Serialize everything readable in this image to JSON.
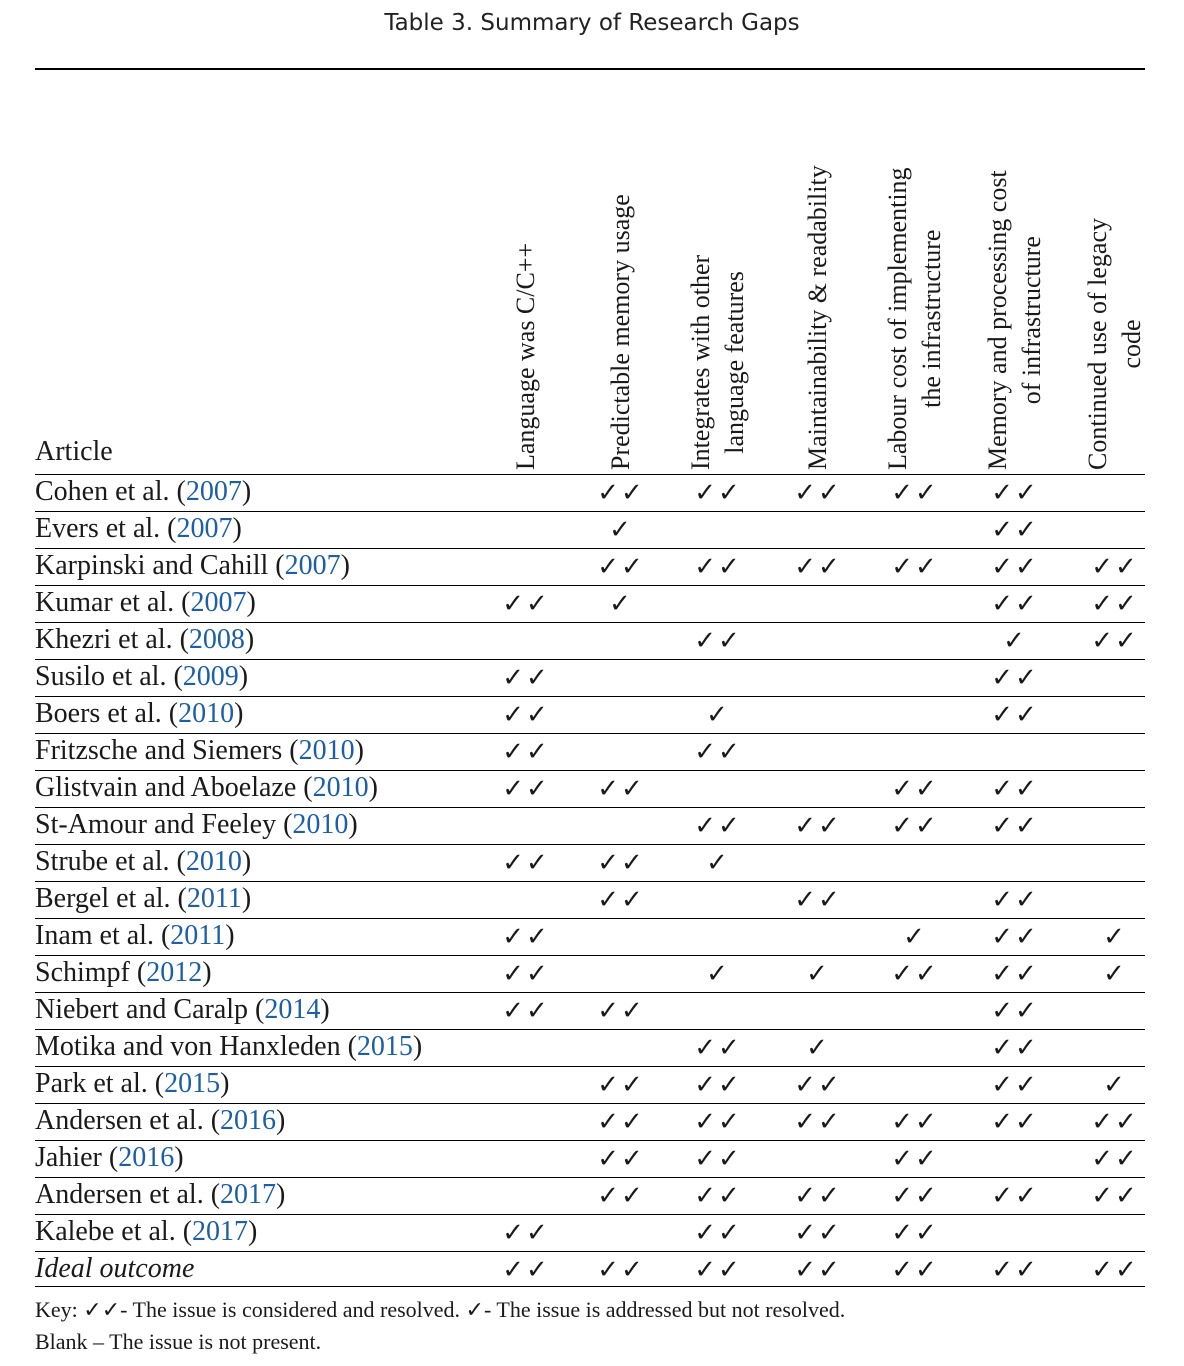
{
  "caption": "Table 3.  Summary of Research Gaps",
  "article_header": "Article",
  "columns": [
    [
      "Language was C/C++"
    ],
    [
      "Predictable memory usage"
    ],
    [
      "Integrates with other",
      "language features"
    ],
    [
      "Maintainability & readability"
    ],
    [
      "Labour cost of implementing",
      "the infrastructure"
    ],
    [
      "Memory and processing cost",
      "of infrastructure"
    ],
    [
      "Continued use of legacy",
      "code"
    ]
  ],
  "rows": [
    {
      "name": "Cohen et al. (",
      "year": "2007",
      "close": ")",
      "marks": [
        "",
        "✓✓",
        "✓✓",
        "✓✓",
        "✓✓",
        "✓✓",
        ""
      ]
    },
    {
      "name": "Evers et al. (",
      "year": "2007",
      "close": ")",
      "marks": [
        "",
        "✓",
        "",
        "",
        "",
        "✓✓",
        ""
      ]
    },
    {
      "name": "Karpinski and Cahill (",
      "year": "2007",
      "close": ")",
      "marks": [
        "",
        "✓✓",
        "✓✓",
        "✓✓",
        "✓✓",
        "✓✓",
        "✓✓"
      ]
    },
    {
      "name": "Kumar et al. (",
      "year": "2007",
      "close": ")",
      "marks": [
        "✓✓",
        "✓",
        "",
        "",
        "",
        "✓✓",
        "✓✓"
      ]
    },
    {
      "name": "Khezri et al. (",
      "year": "2008",
      "close": ")",
      "marks": [
        "",
        "",
        "✓✓",
        "",
        "",
        "✓",
        "✓✓"
      ]
    },
    {
      "name": "Susilo et al. (",
      "year": "2009",
      "close": ")",
      "marks": [
        "✓✓",
        "",
        "",
        "",
        "",
        "✓✓",
        ""
      ]
    },
    {
      "name": "Boers et al. (",
      "year": "2010",
      "close": ")",
      "marks": [
        "✓✓",
        "",
        "✓",
        "",
        "",
        "✓✓",
        ""
      ]
    },
    {
      "name": "Fritzsche and Siemers (",
      "year": "2010",
      "close": ")",
      "marks": [
        "✓✓",
        "",
        "✓✓",
        "",
        "",
        "",
        ""
      ]
    },
    {
      "name": "Glistvain and Aboelaze (",
      "year": "2010",
      "close": ")",
      "marks": [
        "✓✓",
        "✓✓",
        "",
        "",
        "✓✓",
        "✓✓",
        ""
      ]
    },
    {
      "name": "St-Amour and Feeley (",
      "year": "2010",
      "close": ")",
      "marks": [
        "",
        "",
        "✓✓",
        "✓✓",
        "✓✓",
        "✓✓",
        ""
      ]
    },
    {
      "name": "Strube et al. (",
      "year": "2010",
      "close": ")",
      "marks": [
        "✓✓",
        "✓✓",
        "✓",
        "",
        "",
        "",
        ""
      ]
    },
    {
      "name": "Bergel et al. (",
      "year": "2011",
      "close": ")",
      "marks": [
        "",
        "✓✓",
        "",
        "✓✓",
        "",
        "✓✓",
        ""
      ]
    },
    {
      "name": "Inam et al. (",
      "year": "2011",
      "close": ")",
      "marks": [
        "✓✓",
        "",
        "",
        "",
        "✓",
        "✓✓",
        "✓"
      ]
    },
    {
      "name": "Schimpf (",
      "year": "2012",
      "close": ")",
      "marks": [
        "✓✓",
        "",
        "✓",
        "✓",
        "✓✓",
        "✓✓",
        "✓"
      ]
    },
    {
      "name": "Niebert and Caralp (",
      "year": "2014",
      "close": ")",
      "marks": [
        "✓✓",
        "✓✓",
        "",
        "",
        "",
        "✓✓",
        ""
      ]
    },
    {
      "name": "Motika and von Hanxleden (",
      "year": "2015",
      "close": ")",
      "marks": [
        "",
        "",
        "✓✓",
        "✓",
        "",
        "✓✓",
        ""
      ]
    },
    {
      "name": "Park et al. (",
      "year": "2015",
      "close": ")",
      "marks": [
        "",
        "✓✓",
        "✓✓",
        "✓✓",
        "",
        "✓✓",
        "✓"
      ]
    },
    {
      "name": "Andersen et al. (",
      "year": "2016",
      "close": ")",
      "marks": [
        "",
        "✓✓",
        "✓✓",
        "✓✓",
        "✓✓",
        "✓✓",
        "✓✓"
      ]
    },
    {
      "name": "Jahier (",
      "year": "2016",
      "close": ")",
      "marks": [
        "",
        "✓✓",
        "✓✓",
        "",
        "✓✓",
        "",
        "✓✓"
      ]
    },
    {
      "name": "Andersen et al. (",
      "year": "2017",
      "close": ")",
      "marks": [
        "",
        "✓✓",
        "✓✓",
        "✓✓",
        "✓✓",
        "✓✓",
        "✓✓"
      ]
    },
    {
      "name": "Kalebe et al. (",
      "year": "2017",
      "close": ")",
      "marks": [
        "✓✓",
        "",
        "✓✓",
        "✓✓",
        "✓✓",
        "",
        ""
      ]
    },
    {
      "name": "Ideal outcome",
      "year": "",
      "close": "",
      "ideal": true,
      "marks": [
        "✓✓",
        "✓✓",
        "✓✓",
        "✓✓",
        "✓✓",
        "✓✓",
        "✓✓"
      ]
    }
  ],
  "key_line1": "Key: ✓✓- The issue is considered and resolved. ✓- The issue is addressed but not resolved.",
  "key_line2": "Blank – The issue is not present."
}
